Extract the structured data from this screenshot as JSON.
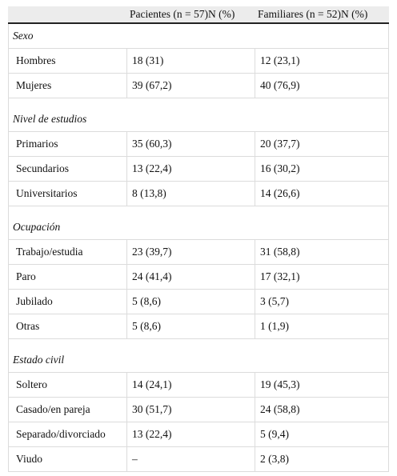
{
  "table": {
    "columns": [
      "Pacientes (n = 57)N (%)",
      "Familiares (n = 52)N (%)"
    ],
    "sections": [
      {
        "title": "Sexo",
        "rows": [
          [
            "Hombres",
            "18 (31)",
            "12 (23,1)"
          ],
          [
            "Mujeres",
            "39 (67,2)",
            "40 (76,9)"
          ]
        ]
      },
      {
        "title": "Nivel de estudios",
        "rows": [
          [
            "Primarios",
            "35 (60,3)",
            "20 (37,7)"
          ],
          [
            "Secundarios",
            "13 (22,4)",
            "16 (30,2)"
          ],
          [
            "Universitarios",
            "8 (13,8)",
            "14 (26,6)"
          ]
        ]
      },
      {
        "title": "Ocupación",
        "rows": [
          [
            "Trabajo/estudia",
            "23 (39,7)",
            "31 (58,8)"
          ],
          [
            "Paro",
            "24 (41,4)",
            "17 (32,1)"
          ],
          [
            "Jubilado",
            "5 (8,6)",
            "3 (5,7)"
          ],
          [
            "Otras",
            "5 (8,6)",
            "1 (1,9)"
          ]
        ]
      },
      {
        "title": "Estado civil",
        "rows": [
          [
            "Soltero",
            "14 (24,1)",
            "19 (45,3)"
          ],
          [
            "Casado/en pareja",
            "30 (51,7)",
            "24 (58,8)"
          ],
          [
            "Separado/divorciado",
            "13 (22,4)",
            "5 (9,4)"
          ],
          [
            "Viudo",
            "–",
            "2 (3,8)"
          ]
        ]
      }
    ]
  }
}
